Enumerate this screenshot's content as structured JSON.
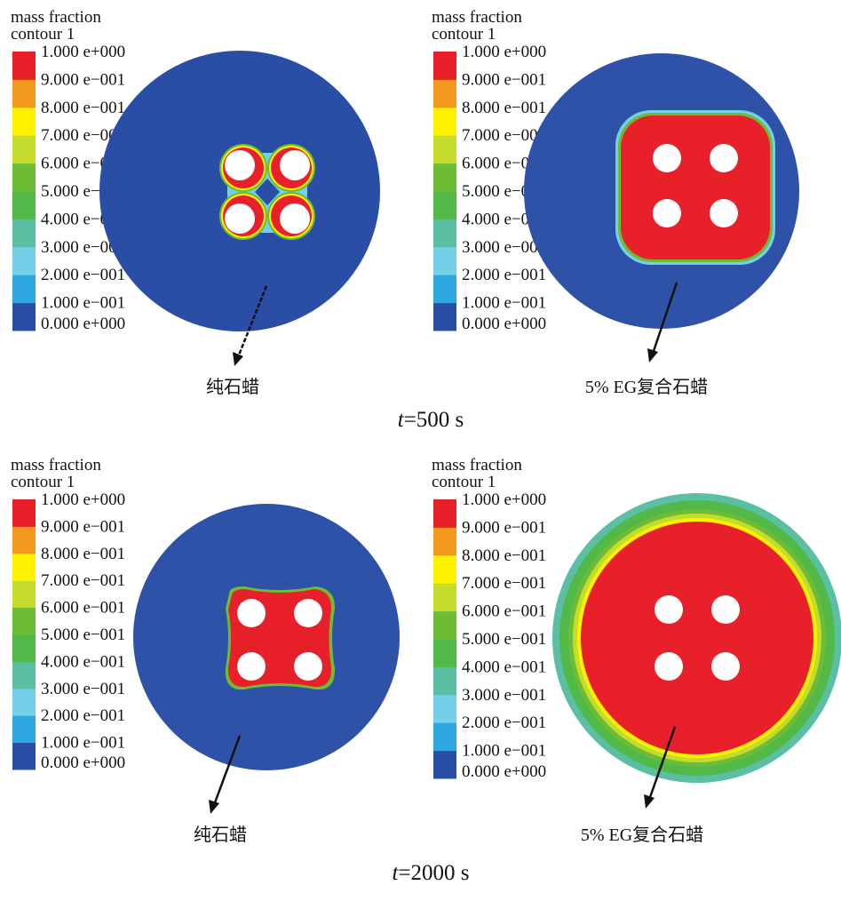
{
  "colormap": [
    "#2a4ea6",
    "#2fa8e2",
    "#75cfe9",
    "#5bbfa4",
    "#52b848",
    "#6cbd35",
    "#c6dc2c",
    "#fff200",
    "#f39a1e",
    "#e8202a"
  ],
  "legend": {
    "title_line1": "mass fraction",
    "title_line2": "contour 1",
    "ticks": [
      "0.000 e+000",
      "1.000 e−001",
      "2.000 e−001",
      "3.000 e−001",
      "4.000 e−001",
      "5.000 e−001",
      "6.000 e−001",
      "7.000 e−001",
      "8.000 e−001",
      "9.000 e−001",
      "1.000 e+000"
    ]
  },
  "panels": [
    {
      "label": "纯石蜡",
      "time_group": 0
    },
    {
      "label": "5% EG复合石蜡",
      "time_group": 0
    },
    {
      "label": "纯石蜡",
      "time_group": 1
    },
    {
      "label": "5% EG复合石蜡",
      "time_group": 1
    }
  ],
  "times": [
    {
      "var": "t",
      "value": "=500 s"
    },
    {
      "var": "t",
      "value": "=2000 s"
    }
  ]
}
